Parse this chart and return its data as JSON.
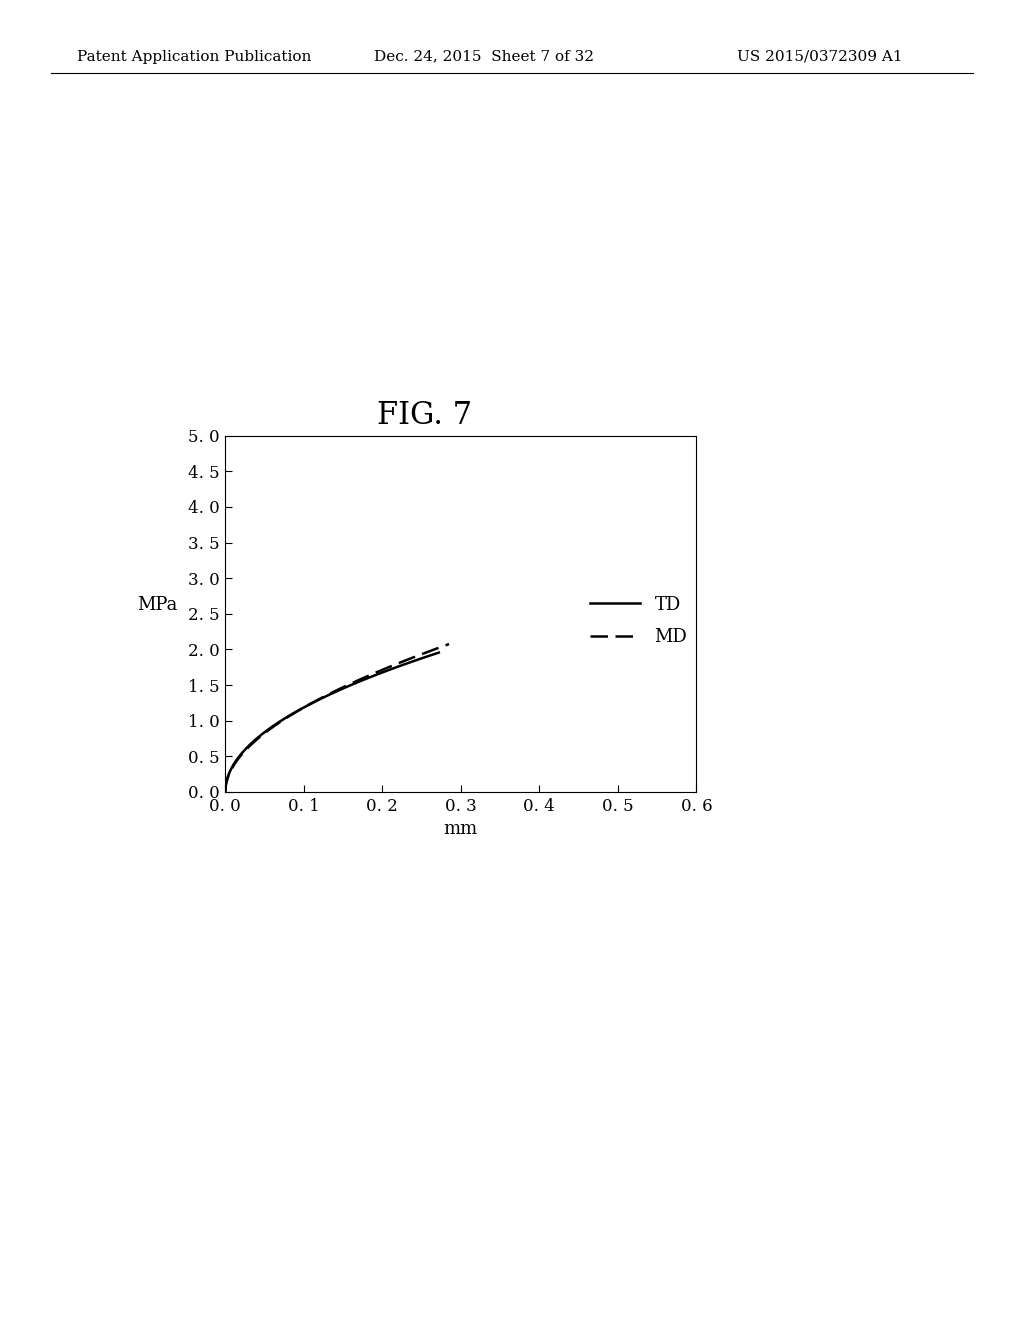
{
  "fig_label": "FIG. 7",
  "xlabel": "mm",
  "ylabel": "MPa",
  "xlim": [
    0.0,
    0.6
  ],
  "ylim": [
    0.0,
    5.0
  ],
  "xticks": [
    0.0,
    0.1,
    0.2,
    0.3,
    0.4,
    0.5,
    0.6
  ],
  "yticks": [
    0.0,
    0.5,
    1.0,
    1.5,
    2.0,
    2.5,
    3.0,
    3.5,
    4.0,
    4.5,
    5.0
  ],
  "td_color": "#000000",
  "md_color": "#000000",
  "background_color": "#ffffff",
  "header_text": "Patent Application Publication",
  "header_date": "Dec. 24, 2015  Sheet 7 of 32",
  "header_patent": "US 2015/0372309 A1",
  "td_linewidth": 1.8,
  "md_linewidth": 1.8,
  "legend_td": "TD",
  "legend_md": "MD",
  "font_size_ticks": 12,
  "font_size_labels": 13,
  "font_size_legend": 13,
  "font_size_fig_label": 22,
  "font_size_header": 11
}
